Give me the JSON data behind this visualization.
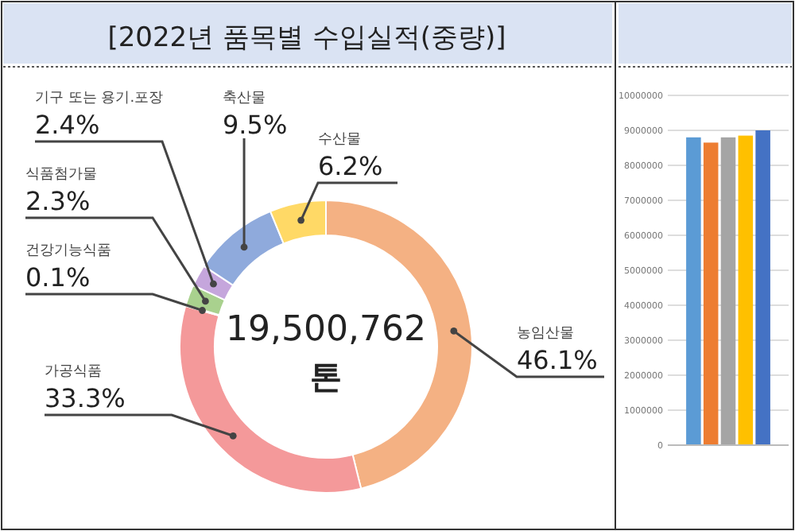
{
  "chart_data": [
    {
      "type": "donut",
      "title": "[2022년 품목별 수입실적(중량)]",
      "categories": [
        "농임산물",
        "가공식품",
        "건강기능식품",
        "식품첨가물",
        "기구 또는 용기.포장",
        "축산물",
        "수산물"
      ],
      "values": [
        46.1,
        33.3,
        0.1,
        2.3,
        2.4,
        9.5,
        6.2
      ],
      "value_labels": [
        "46.1%",
        "33.3%",
        "0.1%",
        "2.3%",
        "2.4%",
        "9.5%",
        "6.2%"
      ],
      "colors": [
        "#f4b183",
        "#f4999a",
        "#ffe699",
        "#a9d18e",
        "#c5a6dc",
        "#8faadc",
        "#ffd966"
      ],
      "annotations": [
        "19,500,762",
        "톤"
      ]
    },
    {
      "type": "bar",
      "categories": [
        null
      ],
      "series": [
        {
          "color": "#5b9bd5",
          "values": [
            8800000
          ]
        },
        {
          "color": "#ed7d31",
          "values": [
            8650000
          ]
        },
        {
          "color": "#a5a5a5",
          "values": [
            8800000
          ]
        },
        {
          "color": "#ffc000",
          "values": [
            8850000
          ]
        },
        {
          "color": "#4472c4",
          "values": [
            9000000
          ]
        }
      ],
      "ylim": [
        0,
        10000000
      ],
      "yticks": [
        0,
        1000000,
        2000000,
        3000000,
        4000000,
        5000000,
        6000000,
        7000000,
        8000000,
        9000000,
        10000000
      ],
      "grid": "y"
    }
  ]
}
